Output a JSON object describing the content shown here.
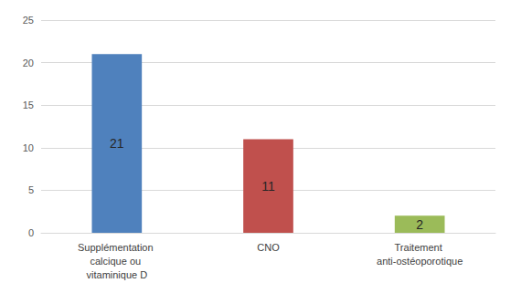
{
  "chart_data": {
    "type": "bar",
    "categories": [
      "Supplémentation calcique ou vitaminique D",
      "CNO",
      "Traitement anti-ostéoporotique"
    ],
    "values": [
      21,
      11,
      2
    ],
    "colors": [
      "#4f81bd",
      "#c0504d",
      "#9bbb59"
    ],
    "ylim": [
      0,
      25
    ],
    "yticks": [
      0,
      5,
      10,
      15,
      20,
      25
    ],
    "grid": true,
    "data_labels": true
  }
}
